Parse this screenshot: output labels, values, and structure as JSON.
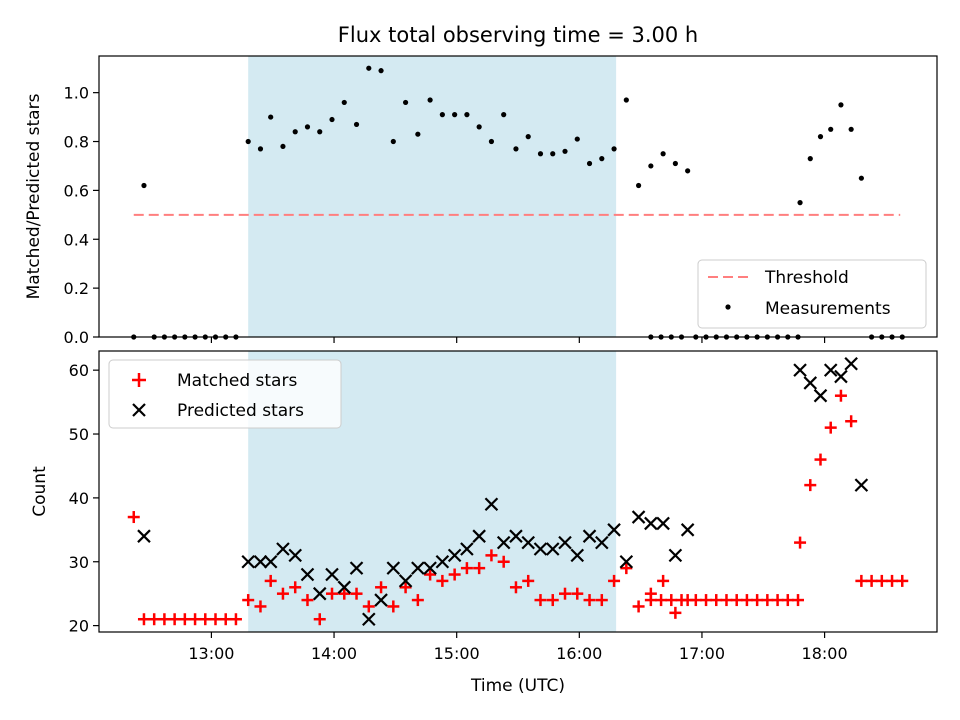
{
  "figure": {
    "title": "Flux total observing time = 3.00 h"
  },
  "chart_data": [
    {
      "type": "scatter",
      "ylabel": "Matched/Predicted stars",
      "xlim": [
        "12:05",
        "18:55"
      ],
      "ylim": [
        0,
        1.15
      ],
      "yticks": [
        "0.0",
        "0.2",
        "0.4",
        "0.6",
        "0.8",
        "1.0"
      ],
      "highlight_span": [
        "13:18",
        "16:18"
      ],
      "legend_position": "lower right",
      "legend": [
        "Threshold",
        "Measurements"
      ],
      "threshold": {
        "name": "Threshold",
        "y": 0.5,
        "x": [
          "12:22",
          "18:37"
        ],
        "color": "#ff7f7f",
        "style": "dashed"
      },
      "measurements": {
        "name": "Measurements",
        "color": "#000000",
        "points": [
          [
            "12:22",
            0.0
          ],
          [
            "12:27",
            0.62
          ],
          [
            "12:32",
            0.0
          ],
          [
            "12:37",
            0.0
          ],
          [
            "12:42",
            0.0
          ],
          [
            "12:47",
            0.0
          ],
          [
            "12:52",
            0.0
          ],
          [
            "12:57",
            0.0
          ],
          [
            "13:02",
            0.0
          ],
          [
            "13:07",
            0.0
          ],
          [
            "13:12",
            0.0
          ],
          [
            "13:18",
            0.8
          ],
          [
            "13:24",
            0.77
          ],
          [
            "13:29",
            0.9
          ],
          [
            "13:35",
            0.78
          ],
          [
            "13:41",
            0.84
          ],
          [
            "13:47",
            0.86
          ],
          [
            "13:53",
            0.84
          ],
          [
            "13:59",
            0.89
          ],
          [
            "14:05",
            0.96
          ],
          [
            "14:11",
            0.87
          ],
          [
            "14:17",
            1.1
          ],
          [
            "14:23",
            1.09
          ],
          [
            "14:29",
            0.8
          ],
          [
            "14:35",
            0.96
          ],
          [
            "14:41",
            0.83
          ],
          [
            "14:47",
            0.97
          ],
          [
            "14:53",
            0.91
          ],
          [
            "14:59",
            0.91
          ],
          [
            "15:05",
            0.91
          ],
          [
            "15:11",
            0.86
          ],
          [
            "15:17",
            0.8
          ],
          [
            "15:23",
            0.91
          ],
          [
            "15:29",
            0.77
          ],
          [
            "15:35",
            0.82
          ],
          [
            "15:41",
            0.75
          ],
          [
            "15:47",
            0.75
          ],
          [
            "15:53",
            0.76
          ],
          [
            "15:59",
            0.81
          ],
          [
            "16:05",
            0.71
          ],
          [
            "16:11",
            0.73
          ],
          [
            "16:17",
            0.77
          ],
          [
            "16:23",
            0.97
          ],
          [
            "16:29",
            0.62
          ],
          [
            "16:35",
            0.7
          ],
          [
            "16:41",
            0.75
          ],
          [
            "16:47",
            0.71
          ],
          [
            "16:53",
            0.68
          ],
          [
            "16:35",
            0.0
          ],
          [
            "16:40",
            0.0
          ],
          [
            "16:45",
            0.0
          ],
          [
            "16:50",
            0.0
          ],
          [
            "16:57",
            0.0
          ],
          [
            "17:02",
            0.0
          ],
          [
            "17:07",
            0.0
          ],
          [
            "17:12",
            0.0
          ],
          [
            "17:17",
            0.0
          ],
          [
            "17:22",
            0.0
          ],
          [
            "17:27",
            0.0
          ],
          [
            "17:32",
            0.0
          ],
          [
            "17:37",
            0.0
          ],
          [
            "17:42",
            0.0
          ],
          [
            "17:47",
            0.0
          ],
          [
            "17:48",
            0.55
          ],
          [
            "17:53",
            0.73
          ],
          [
            "17:58",
            0.82
          ],
          [
            "18:03",
            0.85
          ],
          [
            "18:08",
            0.95
          ],
          [
            "18:13",
            0.85
          ],
          [
            "18:18",
            0.65
          ],
          [
            "18:23",
            0.0
          ],
          [
            "18:28",
            0.0
          ],
          [
            "18:33",
            0.0
          ],
          [
            "18:38",
            0.0
          ]
        ]
      }
    },
    {
      "type": "scatter",
      "xlabel": "Time (UTC)",
      "ylabel": "Count",
      "xlim": [
        "12:05",
        "18:55"
      ],
      "ylim": [
        19,
        63
      ],
      "xticks": [
        "13:00",
        "14:00",
        "15:00",
        "16:00",
        "17:00",
        "18:00"
      ],
      "yticks": [
        "20",
        "30",
        "40",
        "50",
        "60"
      ],
      "highlight_span": [
        "13:18",
        "16:18"
      ],
      "legend_position": "upper left",
      "legend": [
        "Matched stars",
        "Predicted stars"
      ],
      "series": [
        {
          "name": "Matched stars",
          "marker": "plus",
          "color": "#ff0000",
          "points": [
            [
              "12:22",
              37
            ],
            [
              "12:27",
              21
            ],
            [
              "12:32",
              21
            ],
            [
              "12:37",
              21
            ],
            [
              "12:42",
              21
            ],
            [
              "12:47",
              21
            ],
            [
              "12:52",
              21
            ],
            [
              "12:57",
              21
            ],
            [
              "13:02",
              21
            ],
            [
              "13:07",
              21
            ],
            [
              "13:12",
              21
            ],
            [
              "13:18",
              24
            ],
            [
              "13:24",
              23
            ],
            [
              "13:29",
              27
            ],
            [
              "13:35",
              25
            ],
            [
              "13:41",
              26
            ],
            [
              "13:47",
              24
            ],
            [
              "13:53",
              21
            ],
            [
              "13:59",
              25
            ],
            [
              "14:05",
              25
            ],
            [
              "14:11",
              25
            ],
            [
              "14:17",
              23
            ],
            [
              "14:23",
              26
            ],
            [
              "14:29",
              23
            ],
            [
              "14:35",
              26
            ],
            [
              "14:41",
              24
            ],
            [
              "14:47",
              28
            ],
            [
              "14:53",
              27
            ],
            [
              "14:59",
              28
            ],
            [
              "15:05",
              29
            ],
            [
              "15:11",
              29
            ],
            [
              "15:17",
              31
            ],
            [
              "15:23",
              30
            ],
            [
              "15:29",
              26
            ],
            [
              "15:35",
              27
            ],
            [
              "15:41",
              24
            ],
            [
              "15:47",
              24
            ],
            [
              "15:53",
              25
            ],
            [
              "15:59",
              25
            ],
            [
              "16:05",
              24
            ],
            [
              "16:11",
              24
            ],
            [
              "16:17",
              27
            ],
            [
              "16:23",
              29
            ],
            [
              "16:29",
              23
            ],
            [
              "16:35",
              25
            ],
            [
              "16:41",
              27
            ],
            [
              "16:47",
              22
            ],
            [
              "16:53",
              24
            ],
            [
              "16:35",
              24
            ],
            [
              "16:40",
              24
            ],
            [
              "16:45",
              24
            ],
            [
              "16:50",
              24
            ],
            [
              "16:57",
              24
            ],
            [
              "17:02",
              24
            ],
            [
              "17:07",
              24
            ],
            [
              "17:12",
              24
            ],
            [
              "17:17",
              24
            ],
            [
              "17:22",
              24
            ],
            [
              "17:27",
              24
            ],
            [
              "17:32",
              24
            ],
            [
              "17:37",
              24
            ],
            [
              "17:42",
              24
            ],
            [
              "17:47",
              24
            ],
            [
              "17:48",
              33
            ],
            [
              "17:53",
              42
            ],
            [
              "17:58",
              46
            ],
            [
              "18:03",
              51
            ],
            [
              "18:08",
              56
            ],
            [
              "18:13",
              52
            ],
            [
              "18:18",
              27
            ],
            [
              "18:23",
              27
            ],
            [
              "18:28",
              27
            ],
            [
              "18:33",
              27
            ],
            [
              "18:38",
              27
            ]
          ]
        },
        {
          "name": "Predicted stars",
          "marker": "x",
          "color": "#000000",
          "points": [
            [
              "12:27",
              34
            ],
            [
              "13:18",
              30
            ],
            [
              "13:24",
              30
            ],
            [
              "13:29",
              30
            ],
            [
              "13:35",
              32
            ],
            [
              "13:41",
              31
            ],
            [
              "13:47",
              28
            ],
            [
              "13:53",
              25
            ],
            [
              "13:59",
              28
            ],
            [
              "14:05",
              26
            ],
            [
              "14:11",
              29
            ],
            [
              "14:17",
              21
            ],
            [
              "14:23",
              24
            ],
            [
              "14:29",
              29
            ],
            [
              "14:35",
              27
            ],
            [
              "14:41",
              29
            ],
            [
              "14:47",
              29
            ],
            [
              "14:53",
              30
            ],
            [
              "14:59",
              31
            ],
            [
              "15:05",
              32
            ],
            [
              "15:11",
              34
            ],
            [
              "15:17",
              39
            ],
            [
              "15:23",
              33
            ],
            [
              "15:29",
              34
            ],
            [
              "15:35",
              33
            ],
            [
              "15:41",
              32
            ],
            [
              "15:47",
              32
            ],
            [
              "15:53",
              33
            ],
            [
              "15:59",
              31
            ],
            [
              "16:05",
              34
            ],
            [
              "16:11",
              33
            ],
            [
              "16:17",
              35
            ],
            [
              "16:23",
              30
            ],
            [
              "16:29",
              37
            ],
            [
              "16:35",
              36
            ],
            [
              "16:41",
              36
            ],
            [
              "16:47",
              31
            ],
            [
              "16:53",
              35
            ],
            [
              "17:48",
              60
            ],
            [
              "17:53",
              58
            ],
            [
              "17:58",
              56
            ],
            [
              "18:03",
              60
            ],
            [
              "18:08",
              59
            ],
            [
              "18:13",
              61
            ],
            [
              "18:18",
              42
            ]
          ]
        }
      ]
    }
  ]
}
